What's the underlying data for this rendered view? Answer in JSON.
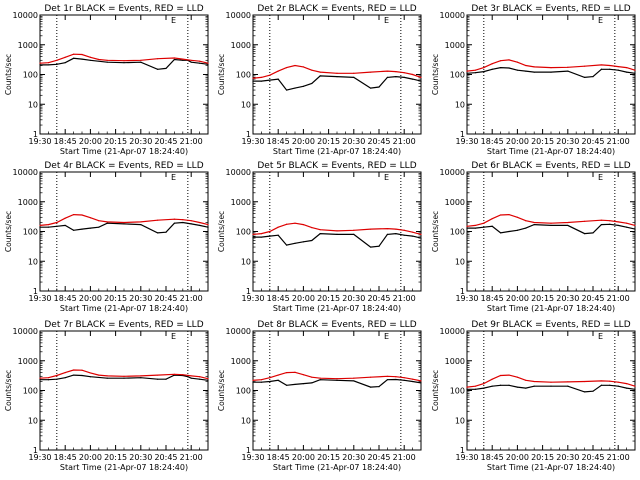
{
  "page": {
    "background": "#ffffff",
    "event_color": "#000000",
    "lld_color": "#dd0000"
  },
  "chart_data": [
    {
      "type": "line",
      "title": "Det 1r BLACK = Events, RED = LLD",
      "ylabel": "Counts/sec",
      "xlabel": "Start Time (21-Apr-07 18:24:40)",
      "x_tick_labels": [
        "19:30",
        "18:45",
        "20:00",
        "20:15",
        "20:30",
        "20:45",
        "21:00"
      ],
      "y_tick_labels": [
        "1",
        "10",
        "100",
        "1000",
        "10000"
      ],
      "ylim": [
        1,
        10000
      ],
      "yscale": "log",
      "corner_label": "E",
      "dotted_markers_min": [
        10,
        88
      ],
      "series": [
        {
          "role": "events",
          "x": [
            0,
            5,
            10,
            15,
            20,
            25,
            30,
            40,
            50,
            60,
            70,
            75,
            80,
            85,
            88,
            90,
            95,
            100
          ],
          "y": [
            210,
            210,
            220,
            250,
            350,
            330,
            300,
            260,
            250,
            260,
            150,
            160,
            320,
            300,
            300,
            260,
            240,
            220
          ]
        },
        {
          "role": "lld",
          "x": [
            0,
            5,
            10,
            15,
            20,
            25,
            30,
            35,
            40,
            50,
            60,
            70,
            80,
            85,
            90,
            95,
            100
          ],
          "y": [
            240,
            250,
            300,
            380,
            480,
            470,
            380,
            320,
            300,
            290,
            300,
            340,
            360,
            330,
            300,
            280,
            240
          ]
        }
      ]
    },
    {
      "type": "line",
      "title": "Det 2r BLACK = Events, RED = LLD",
      "ylabel": "Counts/sec",
      "xlabel": "Start Time (21-Apr-07 18:24:40)",
      "x_tick_labels": [
        "19:30",
        "18:45",
        "20:00",
        "20:15",
        "20:30",
        "20:45",
        "21:00"
      ],
      "y_tick_labels": [
        "1",
        "10",
        "100",
        "1000",
        "10000"
      ],
      "ylim": [
        1,
        10000
      ],
      "yscale": "log",
      "corner_label": "E",
      "dotted_markers_min": [
        10,
        88
      ],
      "series": [
        {
          "role": "events",
          "x": [
            0,
            5,
            10,
            15,
            20,
            25,
            30,
            35,
            40,
            50,
            60,
            70,
            75,
            80,
            85,
            90,
            95,
            100
          ],
          "y": [
            60,
            60,
            65,
            70,
            30,
            35,
            40,
            50,
            90,
            85,
            80,
            35,
            38,
            80,
            85,
            80,
            70,
            60
          ]
        },
        {
          "role": "lld",
          "x": [
            0,
            5,
            10,
            15,
            20,
            25,
            30,
            35,
            40,
            50,
            60,
            70,
            80,
            85,
            90,
            95,
            100
          ],
          "y": [
            75,
            80,
            95,
            130,
            170,
            200,
            180,
            140,
            120,
            110,
            110,
            120,
            130,
            125,
            115,
            100,
            80
          ]
        }
      ]
    },
    {
      "type": "line",
      "title": "Det 3r BLACK = Events, RED = LLD",
      "ylabel": "Counts/sec",
      "xlabel": "Start Time (21-Apr-07 18:24:40)",
      "x_tick_labels": [
        "19:30",
        "18:45",
        "20:00",
        "20:15",
        "20:30",
        "20:45",
        "21:00"
      ],
      "y_tick_labels": [
        "1",
        "10",
        "100",
        "1000",
        "10000"
      ],
      "ylim": [
        1,
        10000
      ],
      "yscale": "log",
      "corner_label": "E",
      "dotted_markers_min": [
        10,
        88
      ],
      "series": [
        {
          "role": "events",
          "x": [
            0,
            5,
            10,
            15,
            20,
            25,
            30,
            35,
            40,
            50,
            60,
            70,
            75,
            80,
            85,
            90,
            95,
            100
          ],
          "y": [
            110,
            115,
            125,
            150,
            170,
            165,
            140,
            130,
            120,
            120,
            130,
            80,
            85,
            150,
            150,
            140,
            120,
            110
          ]
        },
        {
          "role": "lld",
          "x": [
            0,
            5,
            10,
            15,
            20,
            25,
            30,
            35,
            40,
            50,
            60,
            70,
            80,
            85,
            90,
            95,
            100
          ],
          "y": [
            130,
            140,
            170,
            230,
            290,
            310,
            260,
            200,
            180,
            170,
            175,
            190,
            210,
            200,
            185,
            170,
            140
          ]
        }
      ]
    },
    {
      "type": "line",
      "title": "Det 4r BLACK = Events, RED = LLD",
      "ylabel": "Counts/sec",
      "xlabel": "Start Time (21-Apr-07 18:24:40)",
      "x_tick_labels": [
        "19:30",
        "18:45",
        "20:00",
        "20:15",
        "20:30",
        "20:45",
        "21:00"
      ],
      "y_tick_labels": [
        "1",
        "10",
        "100",
        "1000",
        "10000"
      ],
      "ylim": [
        1,
        10000
      ],
      "yscale": "log",
      "corner_label": "E",
      "dotted_markers_min": [
        10,
        88
      ],
      "series": [
        {
          "role": "events",
          "x": [
            0,
            5,
            10,
            15,
            20,
            25,
            30,
            35,
            40,
            50,
            60,
            70,
            75,
            80,
            85,
            90,
            95,
            100
          ],
          "y": [
            140,
            140,
            150,
            160,
            110,
            120,
            130,
            140,
            190,
            180,
            170,
            90,
            95,
            190,
            200,
            180,
            160,
            140
          ]
        },
        {
          "role": "lld",
          "x": [
            0,
            5,
            10,
            15,
            20,
            25,
            30,
            35,
            40,
            50,
            60,
            70,
            80,
            85,
            90,
            95,
            100
          ],
          "y": [
            160,
            170,
            200,
            280,
            370,
            360,
            290,
            230,
            210,
            200,
            210,
            240,
            260,
            250,
            230,
            200,
            170
          ]
        }
      ]
    },
    {
      "type": "line",
      "title": "Det 5r BLACK = Events, RED = LLD",
      "ylabel": "Counts/sec",
      "xlabel": "Start Time (21-Apr-07 18:24:40)",
      "x_tick_labels": [
        "19:30",
        "18:45",
        "20:00",
        "20:15",
        "20:30",
        "20:45",
        "21:00"
      ],
      "y_tick_labels": [
        "1",
        "10",
        "100",
        "1000",
        "10000"
      ],
      "ylim": [
        1,
        10000
      ],
      "yscale": "log",
      "corner_label": "E",
      "dotted_markers_min": [
        10,
        88
      ],
      "series": [
        {
          "role": "events",
          "x": [
            0,
            5,
            10,
            15,
            20,
            25,
            30,
            35,
            40,
            50,
            60,
            70,
            75,
            80,
            85,
            90,
            95,
            100
          ],
          "y": [
            65,
            65,
            70,
            75,
            35,
            40,
            45,
            50,
            85,
            80,
            80,
            30,
            32,
            80,
            85,
            75,
            70,
            60
          ]
        },
        {
          "role": "lld",
          "x": [
            0,
            5,
            10,
            15,
            20,
            25,
            30,
            35,
            40,
            50,
            60,
            70,
            80,
            85,
            90,
            95,
            100
          ],
          "y": [
            80,
            85,
            100,
            140,
            175,
            190,
            170,
            135,
            115,
            105,
            110,
            120,
            125,
            120,
            110,
            95,
            80
          ]
        }
      ]
    },
    {
      "type": "line",
      "title": "Det 6r BLACK = Events, RED = LLD",
      "ylabel": "Counts/sec",
      "xlabel": "Start Time (21-Apr-07 18:24:40)",
      "x_tick_labels": [
        "19:30",
        "18:45",
        "20:00",
        "20:15",
        "20:30",
        "20:45",
        "21:00"
      ],
      "y_tick_labels": [
        "1",
        "10",
        "100",
        "1000",
        "10000"
      ],
      "ylim": [
        1,
        10000
      ],
      "yscale": "log",
      "corner_label": "E",
      "dotted_markers_min": [
        10,
        88
      ],
      "series": [
        {
          "role": "events",
          "x": [
            0,
            5,
            10,
            15,
            20,
            25,
            30,
            35,
            40,
            50,
            60,
            70,
            75,
            80,
            85,
            90,
            95,
            100
          ],
          "y": [
            130,
            130,
            140,
            150,
            90,
            100,
            110,
            130,
            170,
            160,
            160,
            85,
            90,
            170,
            175,
            160,
            140,
            120
          ]
        },
        {
          "role": "lld",
          "x": [
            0,
            5,
            10,
            15,
            20,
            25,
            30,
            35,
            40,
            50,
            60,
            70,
            80,
            85,
            90,
            95,
            100
          ],
          "y": [
            150,
            160,
            190,
            270,
            360,
            370,
            300,
            230,
            200,
            190,
            200,
            220,
            240,
            230,
            210,
            190,
            160
          ]
        }
      ]
    },
    {
      "type": "line",
      "title": "Det 7r BLACK = Events, RED = LLD",
      "ylabel": "Counts/sec",
      "xlabel": "Start Time (21-Apr-07 18:24:40)",
      "x_tick_labels": [
        "19:30",
        "18:45",
        "20:00",
        "20:15",
        "20:30",
        "20:45",
        "21:00"
      ],
      "y_tick_labels": [
        "1",
        "10",
        "100",
        "1000",
        "10000"
      ],
      "ylim": [
        1,
        10000
      ],
      "yscale": "log",
      "corner_label": "E",
      "dotted_markers_min": [
        10,
        88
      ],
      "series": [
        {
          "role": "events",
          "x": [
            0,
            5,
            10,
            15,
            20,
            25,
            30,
            40,
            50,
            60,
            70,
            75,
            80,
            85,
            88,
            90,
            95,
            100
          ],
          "y": [
            230,
            230,
            240,
            270,
            330,
            320,
            290,
            260,
            260,
            270,
            240,
            240,
            330,
            320,
            290,
            260,
            240,
            220
          ]
        },
        {
          "role": "lld",
          "x": [
            0,
            5,
            10,
            15,
            20,
            25,
            30,
            35,
            40,
            50,
            60,
            70,
            80,
            85,
            90,
            95,
            100
          ],
          "y": [
            260,
            270,
            320,
            400,
            490,
            480,
            390,
            330,
            310,
            300,
            310,
            330,
            350,
            340,
            310,
            290,
            250
          ]
        }
      ]
    },
    {
      "type": "line",
      "title": "Det 8r BLACK = Events, RED = LLD",
      "ylabel": "Counts/sec",
      "xlabel": "Start Time (21-Apr-07 18:24:40)",
      "x_tick_labels": [
        "19:30",
        "18:45",
        "20:00",
        "20:15",
        "20:30",
        "20:45",
        "21:00"
      ],
      "y_tick_labels": [
        "1",
        "10",
        "100",
        "1000",
        "10000"
      ],
      "ylim": [
        1,
        10000
      ],
      "yscale": "log",
      "corner_label": "E",
      "dotted_markers_min": [
        10,
        88
      ],
      "series": [
        {
          "role": "events",
          "x": [
            0,
            5,
            10,
            15,
            20,
            25,
            30,
            35,
            40,
            50,
            60,
            70,
            75,
            80,
            85,
            90,
            95,
            100
          ],
          "y": [
            190,
            190,
            200,
            220,
            150,
            160,
            170,
            180,
            230,
            220,
            210,
            130,
            135,
            230,
            235,
            220,
            200,
            180
          ]
        },
        {
          "role": "lld",
          "x": [
            0,
            5,
            10,
            15,
            20,
            25,
            30,
            35,
            40,
            50,
            60,
            70,
            80,
            85,
            90,
            95,
            100
          ],
          "y": [
            220,
            230,
            270,
            330,
            400,
            410,
            340,
            280,
            260,
            250,
            260,
            280,
            300,
            290,
            270,
            240,
            210
          ]
        }
      ]
    },
    {
      "type": "line",
      "title": "Det 9r BLACK = Events, RED = LLD",
      "ylabel": "Counts/sec",
      "xlabel": "Start Time (21-Apr-07 18:24:40)",
      "x_tick_labels": [
        "19:30",
        "18:45",
        "20:00",
        "20:15",
        "20:30",
        "20:45",
        "21:00"
      ],
      "y_tick_labels": [
        "1",
        "10",
        "100",
        "1000",
        "10000"
      ],
      "ylim": [
        1,
        10000
      ],
      "yscale": "log",
      "corner_label": "E",
      "dotted_markers_min": [
        10,
        88
      ],
      "series": [
        {
          "role": "events",
          "x": [
            0,
            5,
            10,
            15,
            20,
            25,
            30,
            35,
            40,
            50,
            60,
            70,
            75,
            80,
            85,
            90,
            95,
            100
          ],
          "y": [
            110,
            110,
            120,
            140,
            150,
            150,
            130,
            120,
            140,
            140,
            140,
            90,
            95,
            150,
            150,
            140,
            120,
            110
          ]
        },
        {
          "role": "lld",
          "x": [
            0,
            5,
            10,
            15,
            20,
            25,
            30,
            35,
            40,
            50,
            60,
            70,
            80,
            85,
            90,
            95,
            100
          ],
          "y": [
            130,
            140,
            170,
            240,
            320,
            330,
            280,
            220,
            200,
            190,
            195,
            200,
            210,
            205,
            190,
            170,
            140
          ]
        }
      ]
    }
  ]
}
